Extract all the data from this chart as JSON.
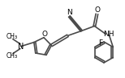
{
  "bg_color": "white",
  "line_color": "#4a4a4a",
  "lw": 1.2,
  "figsize": [
    1.54,
    0.97
  ],
  "dpi": 100,
  "xlim": [
    0,
    154
  ],
  "ylim": [
    0,
    97
  ]
}
